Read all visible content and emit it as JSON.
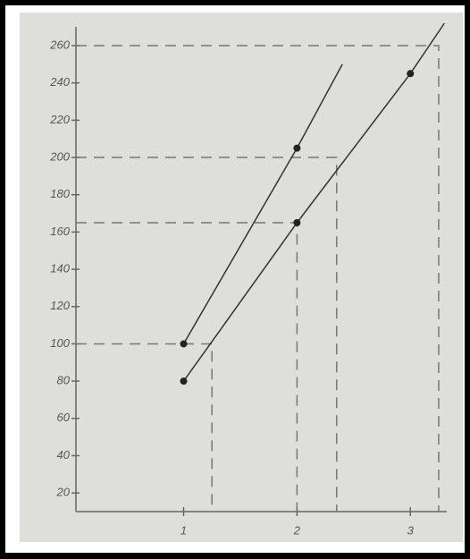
{
  "chart_data": {
    "type": "line",
    "xticks": [
      1,
      2,
      3
    ],
    "xlim": [
      0.05,
      3.4
    ],
    "yticks": [
      20,
      40,
      60,
      80,
      100,
      120,
      140,
      160,
      180,
      200,
      220,
      240,
      260
    ],
    "ylim": [
      10,
      272
    ],
    "series": [
      {
        "color": "#333333",
        "x": [
          1,
          2,
          2.4
        ],
        "values": [
          100,
          205,
          250
        ]
      },
      {
        "color": "#333333",
        "x": [
          1,
          2,
          3,
          3.3
        ],
        "values": [
          80,
          165,
          245,
          272
        ]
      }
    ],
    "points": [
      {
        "x": 1,
        "y": 100
      },
      {
        "x": 2,
        "y": 205
      },
      {
        "x": 1,
        "y": 80
      },
      {
        "x": 2,
        "y": 165
      },
      {
        "x": 3,
        "y": 245
      }
    ],
    "guides": [
      {
        "x": 3.25,
        "y": 260
      },
      {
        "x": 2.35,
        "y": 200
      },
      {
        "x": 2,
        "y": 165
      },
      {
        "x": 1.25,
        "y": 100
      }
    ]
  }
}
